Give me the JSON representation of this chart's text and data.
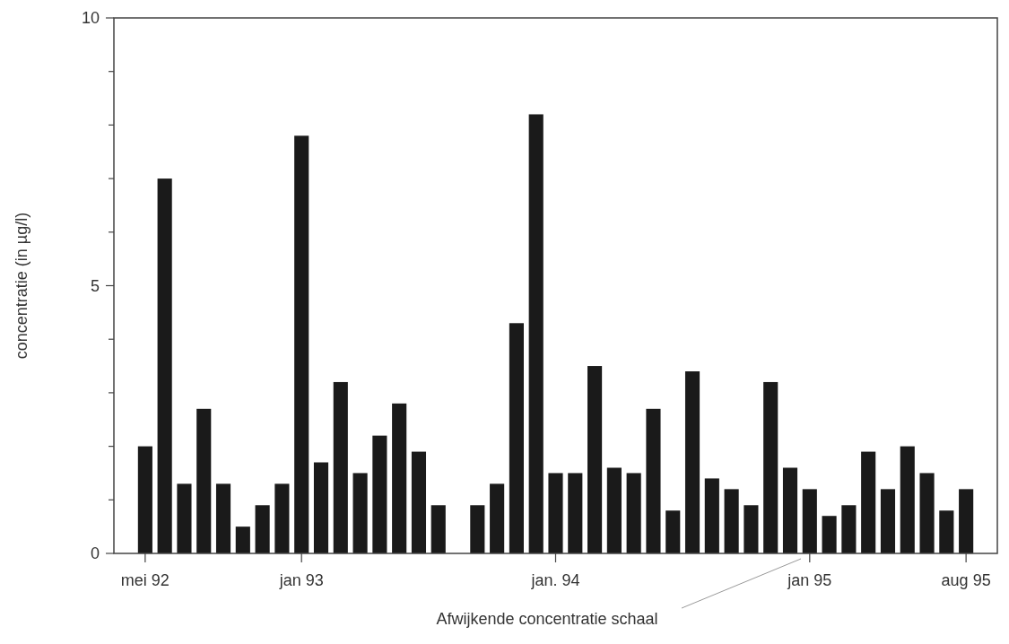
{
  "chart_data": {
    "type": "bar",
    "ylabel": "concentratie (in µg/l)",
    "annotations": [
      "Afwijkende concentratie schaal"
    ],
    "categories": [
      "mei 92",
      null,
      null,
      null,
      null,
      null,
      null,
      null,
      "jan 93",
      null,
      null,
      null,
      null,
      null,
      null,
      null,
      null,
      null,
      null,
      null,
      null,
      "jan. 94",
      null,
      null,
      null,
      null,
      null,
      null,
      null,
      null,
      null,
      null,
      null,
      null,
      "jan 95",
      null,
      null,
      null,
      null,
      null,
      null,
      null,
      "aug 95"
    ],
    "values": [
      2.0,
      7.0,
      1.3,
      2.7,
      1.3,
      0.5,
      0.9,
      1.3,
      7.8,
      1.7,
      3.2,
      1.5,
      2.2,
      2.8,
      1.9,
      0.9,
      null,
      0.9,
      1.3,
      4.3,
      8.2,
      1.5,
      1.5,
      3.5,
      1.6,
      1.5,
      2.7,
      0.8,
      3.4,
      1.4,
      1.2,
      0.9,
      3.2,
      1.6,
      1.2,
      0.7,
      0.9,
      1.9,
      1.2,
      2.0,
      1.5,
      0.8,
      1.2
    ],
    "color": "#1a1a1a",
    "ylim": [
      0,
      10
    ],
    "yticks": [
      0,
      {
        "value": 1,
        "label": null
      },
      {
        "value": 2,
        "label": null
      },
      {
        "value": 3,
        "label": null
      },
      {
        "value": 4,
        "label": null
      },
      5,
      {
        "value": 6,
        "label": null
      },
      {
        "value": 7,
        "label": null
      },
      {
        "value": 8,
        "label": null
      },
      {
        "value": 9,
        "label": null
      },
      10
    ],
    "grid": false
  }
}
